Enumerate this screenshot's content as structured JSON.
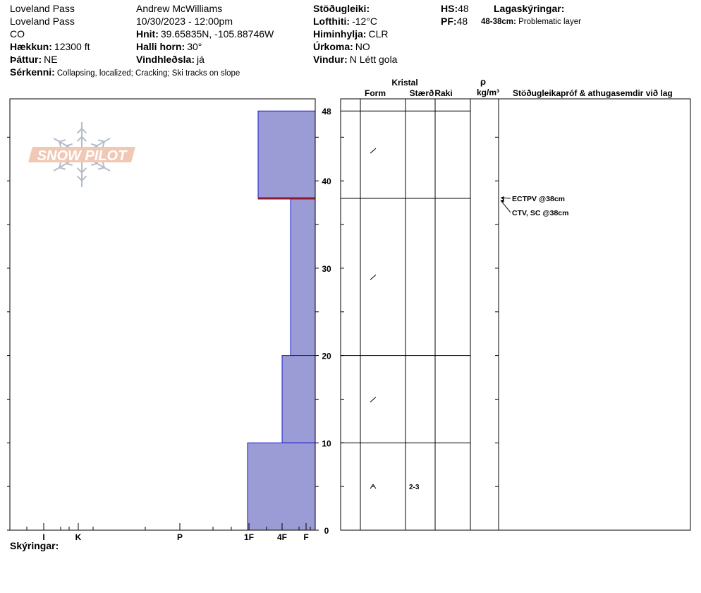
{
  "header": {
    "location": "Loveland Pass",
    "area": "Loveland Pass",
    "state": "CO",
    "elevation_label": "Hækkun:",
    "elevation_value": "12300 ft",
    "aspect_label": "Þáttur:",
    "aspect_value": "NE",
    "features_label": "Sérkenni:",
    "features_value": "Collapsing, localized;  Cracking;  Ski tracks on slope",
    "observer": "Andrew McWilliams",
    "datetime": "10/30/2023 - 12:00pm",
    "coords_label": "Hnit:",
    "coords_value": "39.65835N, -105.88746W",
    "slope_label": "Halli horn:",
    "slope_value": "30°",
    "wind_loading_label": "Vindhleðsla:",
    "wind_loading_value": "já",
    "stability_label": "Stöðugleiki:",
    "stability_value": "",
    "air_temp_label": "Lofthiti:",
    "air_temp_value": "-12°C",
    "sky_label": "Himinhylja:",
    "sky_value": "CLR",
    "precip_label": "Úrkoma:",
    "precip_value": "NO",
    "wind_label": "Vindur:",
    "wind_value": "N Létt gola",
    "hs_label": "HS:",
    "hs_value": "48",
    "pf_label": "PF:",
    "pf_value": "48",
    "layer_notes_label": "Lagaskýringar:",
    "layer_note_range": "48-38cm:",
    "layer_note_text": "Problematic layer"
  },
  "logo": {
    "text": "SNOW PILOT",
    "icon": "snowflake-icon"
  },
  "columns": {
    "crystal": "Kristal",
    "form": "Form",
    "size": "Stærð",
    "moisture": "Raki",
    "rho": "ρ",
    "density_unit": "kg/m³",
    "tests": "Stöðugleikapróf & athugasemdir við lag"
  },
  "footer": {
    "notes_label": "Skýringar:"
  },
  "colors": {
    "layer_fill": "#9b9bd6",
    "layer_edge": "#1a1acc",
    "problem_line": "#8b1a2a",
    "logo_fill": "#f0c8b4",
    "logo_flake": "#b4bcc8"
  },
  "chart_data": {
    "type": "snow-profile",
    "y_unit": "cm",
    "ylim": [
      0,
      48
    ],
    "y_ticks": [
      0,
      10,
      20,
      30,
      40,
      48
    ],
    "hardness_ticks": [
      "I",
      "K",
      "P",
      "1F",
      "4F",
      "F"
    ],
    "layers": [
      {
        "top": 48,
        "bottom": 38,
        "hardness": "1F+",
        "grain_form": "decomposing-fragments-icon",
        "size": "",
        "moisture": ""
      },
      {
        "top": 38,
        "bottom": 20,
        "hardness": "F",
        "grain_form": "decomposing-fragments-icon",
        "size": "",
        "moisture": ""
      },
      {
        "top": 20,
        "bottom": 10,
        "hardness": "4F",
        "grain_form": "decomposing-fragments-icon",
        "size": "",
        "moisture": ""
      },
      {
        "top": 10,
        "bottom": 0,
        "hardness": "1F-",
        "grain_form": "depth-hoar-icon",
        "size": "2-3",
        "moisture": ""
      }
    ],
    "problem_layer_depth": 38,
    "tests": [
      {
        "text": "ECTPV @38cm",
        "depth": 38
      },
      {
        "text": "CTV, SC @38cm",
        "depth": 38
      }
    ]
  }
}
